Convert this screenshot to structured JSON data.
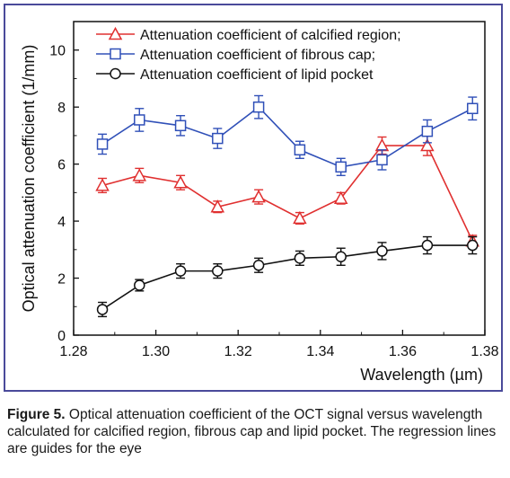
{
  "chart_data": {
    "type": "line",
    "xlabel": "Wavelength (µm)",
    "ylabel": "Optical attenuation coefficient (1/mm)",
    "xlim": [
      1.28,
      1.38
    ],
    "ylim": [
      0,
      11
    ],
    "xticks": [
      1.28,
      1.3,
      1.32,
      1.34,
      1.36,
      1.38
    ],
    "yticks": [
      0,
      2,
      4,
      6,
      8,
      10
    ],
    "legend_position": "top",
    "grid": false,
    "series": [
      {
        "name": "Attenuation coefficient of calcified region;",
        "color": "#e03030",
        "marker": "triangle",
        "x": [
          1.287,
          1.296,
          1.306,
          1.315,
          1.325,
          1.335,
          1.345,
          1.355,
          1.366,
          1.377
        ],
        "y": [
          5.25,
          5.6,
          5.35,
          4.5,
          4.85,
          4.1,
          4.8,
          6.65,
          6.65,
          3.3
        ],
        "err": [
          0.25,
          0.25,
          0.25,
          0.2,
          0.25,
          0.2,
          0.2,
          0.3,
          0.35,
          0.2
        ]
      },
      {
        "name": "Attenuation coefficient of fibrous cap;",
        "color": "#3050b8",
        "marker": "square",
        "x": [
          1.287,
          1.296,
          1.306,
          1.315,
          1.325,
          1.335,
          1.345,
          1.355,
          1.366,
          1.377
        ],
        "y": [
          6.7,
          7.55,
          7.35,
          6.9,
          8.0,
          6.5,
          5.9,
          6.15,
          7.15,
          7.95
        ],
        "err": [
          0.35,
          0.4,
          0.35,
          0.35,
          0.4,
          0.3,
          0.3,
          0.35,
          0.4,
          0.4
        ]
      },
      {
        "name": "Attenuation coefficient of lipid pocket",
        "color": "#111111",
        "marker": "circle",
        "x": [
          1.287,
          1.296,
          1.306,
          1.315,
          1.325,
          1.335,
          1.345,
          1.355,
          1.366,
          1.377
        ],
        "y": [
          0.9,
          1.75,
          2.25,
          2.25,
          2.45,
          2.7,
          2.75,
          2.95,
          3.15,
          3.15
        ],
        "err": [
          0.25,
          0.2,
          0.25,
          0.25,
          0.25,
          0.25,
          0.3,
          0.3,
          0.3,
          0.3
        ]
      }
    ]
  },
  "caption": {
    "label": "Figure 5.",
    "text": " Optical attenuation coefficient of the OCT signal versus wavelength calculated for calcified region, fibrous cap and lipid pocket. The regression lines are guides for the eye"
  }
}
